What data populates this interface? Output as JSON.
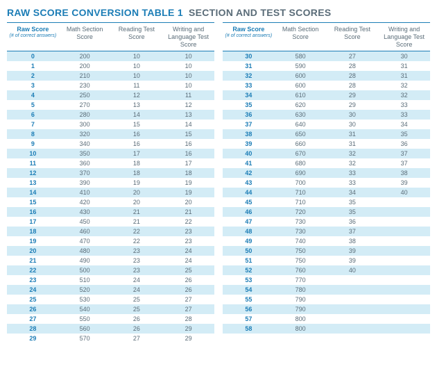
{
  "title_main": "RAW SCORE CONVERSION TABLE 1",
  "title_sub": "SECTION AND TEST SCORES",
  "headers": {
    "raw": "Raw Score",
    "raw_sub": "(# of correct answers)",
    "math": "Math Section Score",
    "reading": "Reading Test Score",
    "writing": "Writing and Language Test Score"
  },
  "colors": {
    "accent": "#1c7db6",
    "text": "#5a6c78",
    "row_even": "#d3ecf6",
    "row_odd": "#ffffff"
  },
  "left_rows": [
    {
      "raw": "0",
      "math": "200",
      "reading": "10",
      "writing": "10"
    },
    {
      "raw": "1",
      "math": "200",
      "reading": "10",
      "writing": "10"
    },
    {
      "raw": "2",
      "math": "210",
      "reading": "10",
      "writing": "10"
    },
    {
      "raw": "3",
      "math": "230",
      "reading": "11",
      "writing": "10"
    },
    {
      "raw": "4",
      "math": "250",
      "reading": "12",
      "writing": "11"
    },
    {
      "raw": "5",
      "math": "270",
      "reading": "13",
      "writing": "12"
    },
    {
      "raw": "6",
      "math": "280",
      "reading": "14",
      "writing": "13"
    },
    {
      "raw": "7",
      "math": "300",
      "reading": "15",
      "writing": "14"
    },
    {
      "raw": "8",
      "math": "320",
      "reading": "16",
      "writing": "15"
    },
    {
      "raw": "9",
      "math": "340",
      "reading": "16",
      "writing": "16"
    },
    {
      "raw": "10",
      "math": "350",
      "reading": "17",
      "writing": "16"
    },
    {
      "raw": "11",
      "math": "360",
      "reading": "18",
      "writing": "17"
    },
    {
      "raw": "12",
      "math": "370",
      "reading": "18",
      "writing": "18"
    },
    {
      "raw": "13",
      "math": "390",
      "reading": "19",
      "writing": "19"
    },
    {
      "raw": "14",
      "math": "410",
      "reading": "20",
      "writing": "19"
    },
    {
      "raw": "15",
      "math": "420",
      "reading": "20",
      "writing": "20"
    },
    {
      "raw": "16",
      "math": "430",
      "reading": "21",
      "writing": "21"
    },
    {
      "raw": "17",
      "math": "450",
      "reading": "21",
      "writing": "22"
    },
    {
      "raw": "18",
      "math": "460",
      "reading": "22",
      "writing": "23"
    },
    {
      "raw": "19",
      "math": "470",
      "reading": "22",
      "writing": "23"
    },
    {
      "raw": "20",
      "math": "480",
      "reading": "23",
      "writing": "24"
    },
    {
      "raw": "21",
      "math": "490",
      "reading": "23",
      "writing": "24"
    },
    {
      "raw": "22",
      "math": "500",
      "reading": "23",
      "writing": "25"
    },
    {
      "raw": "23",
      "math": "510",
      "reading": "24",
      "writing": "26"
    },
    {
      "raw": "24",
      "math": "520",
      "reading": "24",
      "writing": "26"
    },
    {
      "raw": "25",
      "math": "530",
      "reading": "25",
      "writing": "27"
    },
    {
      "raw": "26",
      "math": "540",
      "reading": "25",
      "writing": "27"
    },
    {
      "raw": "27",
      "math": "550",
      "reading": "26",
      "writing": "28"
    },
    {
      "raw": "28",
      "math": "560",
      "reading": "26",
      "writing": "29"
    },
    {
      "raw": "29",
      "math": "570",
      "reading": "27",
      "writing": "29"
    }
  ],
  "right_rows": [
    {
      "raw": "30",
      "math": "580",
      "reading": "27",
      "writing": "30"
    },
    {
      "raw": "31",
      "math": "590",
      "reading": "28",
      "writing": "31"
    },
    {
      "raw": "32",
      "math": "600",
      "reading": "28",
      "writing": "31"
    },
    {
      "raw": "33",
      "math": "600",
      "reading": "28",
      "writing": "32"
    },
    {
      "raw": "34",
      "math": "610",
      "reading": "29",
      "writing": "32"
    },
    {
      "raw": "35",
      "math": "620",
      "reading": "29",
      "writing": "33"
    },
    {
      "raw": "36",
      "math": "630",
      "reading": "30",
      "writing": "33"
    },
    {
      "raw": "37",
      "math": "640",
      "reading": "30",
      "writing": "34"
    },
    {
      "raw": "38",
      "math": "650",
      "reading": "31",
      "writing": "35"
    },
    {
      "raw": "39",
      "math": "660",
      "reading": "31",
      "writing": "36"
    },
    {
      "raw": "40",
      "math": "670",
      "reading": "32",
      "writing": "37"
    },
    {
      "raw": "41",
      "math": "680",
      "reading": "32",
      "writing": "37"
    },
    {
      "raw": "42",
      "math": "690",
      "reading": "33",
      "writing": "38"
    },
    {
      "raw": "43",
      "math": "700",
      "reading": "33",
      "writing": "39"
    },
    {
      "raw": "44",
      "math": "710",
      "reading": "34",
      "writing": "40"
    },
    {
      "raw": "45",
      "math": "710",
      "reading": "35",
      "writing": ""
    },
    {
      "raw": "46",
      "math": "720",
      "reading": "35",
      "writing": ""
    },
    {
      "raw": "47",
      "math": "730",
      "reading": "36",
      "writing": ""
    },
    {
      "raw": "48",
      "math": "730",
      "reading": "37",
      "writing": ""
    },
    {
      "raw": "49",
      "math": "740",
      "reading": "38",
      "writing": ""
    },
    {
      "raw": "50",
      "math": "750",
      "reading": "39",
      "writing": ""
    },
    {
      "raw": "51",
      "math": "750",
      "reading": "39",
      "writing": ""
    },
    {
      "raw": "52",
      "math": "760",
      "reading": "40",
      "writing": ""
    },
    {
      "raw": "53",
      "math": "770",
      "reading": "",
      "writing": ""
    },
    {
      "raw": "54",
      "math": "780",
      "reading": "",
      "writing": ""
    },
    {
      "raw": "55",
      "math": "790",
      "reading": "",
      "writing": ""
    },
    {
      "raw": "56",
      "math": "790",
      "reading": "",
      "writing": ""
    },
    {
      "raw": "57",
      "math": "800",
      "reading": "",
      "writing": ""
    },
    {
      "raw": "58",
      "math": "800",
      "reading": "",
      "writing": ""
    }
  ]
}
